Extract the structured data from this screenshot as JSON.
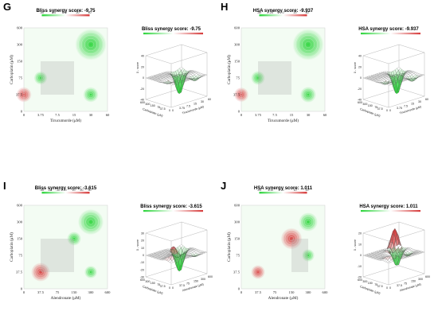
{
  "chart_data": [
    {
      "panel": "G",
      "type": "heatmap",
      "title": "Bliss synergy score: -9.75",
      "title_3d": "Bliss synergy score: -9.75",
      "xlabel": "Tirucumorde (μM)",
      "ylabel": "Carboplatin (μM)",
      "x_ticks": [
        "0",
        "3.75",
        "7.5",
        "15",
        "30",
        "60"
      ],
      "y_ticks": [
        "0",
        "37.5",
        "75",
        "150",
        "300",
        "600"
      ],
      "colorbar_ticks": [
        "-40",
        "-20",
        "0",
        "20",
        "40"
      ],
      "zlabel": "δ - score",
      "z_ticks": [
        "40",
        "20",
        "0",
        "-20",
        "-40"
      ],
      "blobs": [
        {
          "x": 30,
          "y": 300,
          "score": -35
        },
        {
          "x": 0,
          "y": 37.5,
          "score": 8
        },
        {
          "x": 3.75,
          "y": 75,
          "score": -5
        },
        {
          "x": 30,
          "y": 37.5,
          "score": -8
        }
      ],
      "min_box": {
        "x0": 3.75,
        "x1": 15,
        "y0": 37.5,
        "y1": 150
      }
    },
    {
      "panel": "H",
      "type": "heatmap",
      "title": "HSA synergy score: -9.937",
      "title_3d": "HSA synergy score: -9.937",
      "xlabel": "Tirucumorde (μM)",
      "ylabel": "Carboplatin (μM)",
      "x_ticks": [
        "0",
        "3.75",
        "7.5",
        "15",
        "30",
        "60"
      ],
      "y_ticks": [
        "0",
        "37.5",
        "75",
        "150",
        "300",
        "600"
      ],
      "colorbar_ticks": [
        "-40",
        "-20",
        "0",
        "20",
        "40"
      ],
      "zlabel": "δ - score",
      "z_ticks": [
        "40",
        "20",
        "0",
        "-20",
        "-40"
      ],
      "blobs": [
        {
          "x": 30,
          "y": 300,
          "score": -36
        },
        {
          "x": 0,
          "y": 37.5,
          "score": 7
        },
        {
          "x": 3.75,
          "y": 75,
          "score": -6
        },
        {
          "x": 30,
          "y": 37.5,
          "score": -9
        }
      ],
      "min_box": {
        "x0": 3.75,
        "x1": 15,
        "y0": 37.5,
        "y1": 150
      }
    },
    {
      "panel": "I",
      "type": "heatmap",
      "title": "Bliss synergy score: -3.615",
      "title_3d": "Bliss synergy score: -3.615",
      "xlabel": "Alendronate (μM)",
      "ylabel": "Carboplatin (μM)",
      "x_ticks": [
        "0",
        "37.5",
        "75",
        "150",
        "300",
        "600"
      ],
      "y_ticks": [
        "0",
        "37.5",
        "75",
        "150",
        "300",
        "600"
      ],
      "colorbar_ticks": [
        "-30",
        "-20",
        "-10",
        "0",
        "10",
        "20",
        "30"
      ],
      "zlabel": "δ - score",
      "z_ticks": [
        "30",
        "20",
        "10",
        "0",
        "-10",
        "-20",
        "-30"
      ],
      "blobs": [
        {
          "x": 300,
          "y": 300,
          "score": -25
        },
        {
          "x": 37.5,
          "y": 37.5,
          "score": 14
        },
        {
          "x": 150,
          "y": 150,
          "score": -6
        },
        {
          "x": 300,
          "y": 37.5,
          "score": -4
        }
      ],
      "min_box": {
        "x0": 37.5,
        "x1": 150,
        "y0": 37.5,
        "y1": 150
      }
    },
    {
      "panel": "J",
      "type": "heatmap",
      "title": "HSA synergy score: 1.011",
      "title_3d": "HSA synergy score: 1.011",
      "xlabel": "Alendronate (μM)",
      "ylabel": "Carboplatin (μM)",
      "x_ticks": [
        "0",
        "37.5",
        "75",
        "150",
        "300",
        "600"
      ],
      "y_ticks": [
        "0",
        "37.5",
        "75",
        "150",
        "300",
        "600"
      ],
      "colorbar_ticks": [
        "-20",
        "-10",
        "0",
        "10",
        "20"
      ],
      "zlabel": "δ - score",
      "z_ticks": [
        "20",
        "10",
        "0",
        "-10",
        "-20"
      ],
      "blobs": [
        {
          "x": 150,
          "y": 150,
          "score": 18
        },
        {
          "x": 300,
          "y": 300,
          "score": -14
        },
        {
          "x": 37.5,
          "y": 37.5,
          "score": 6
        },
        {
          "x": 300,
          "y": 75,
          "score": -4
        }
      ],
      "min_box": {
        "x0": 150,
        "x1": 300,
        "y0": 37.5,
        "y1": 150
      }
    }
  ],
  "colors": {
    "synergy_red": "#d63a3a",
    "antagonism_green": "#2bd43a",
    "neutral": "#ffffff",
    "mesh": "#555555",
    "box": "#bdbdbd"
  }
}
